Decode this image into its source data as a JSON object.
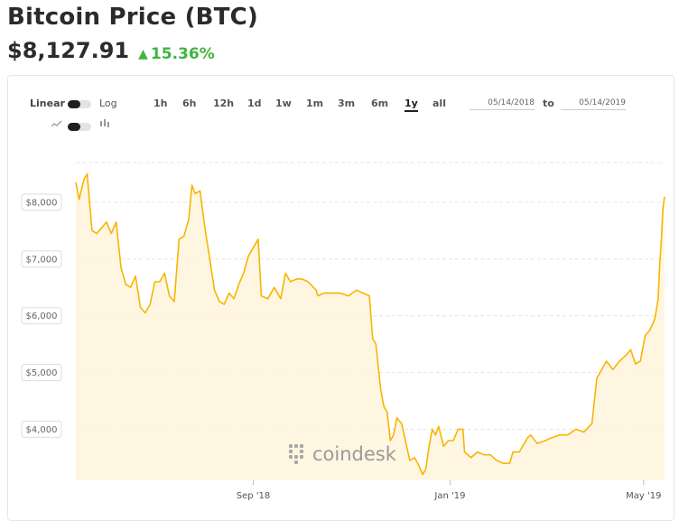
{
  "header": {
    "title": "Bitcoin Price (BTC)",
    "price": "$8,127.91",
    "change": "15.36%",
    "change_color": "#3fb53f"
  },
  "controls": {
    "scale_linear": "Linear",
    "scale_log": "Log",
    "ranges": [
      "1h",
      "6h",
      "12h",
      "1d",
      "1w",
      "1m",
      "3m",
      "6m",
      "1y",
      "all"
    ],
    "active_range": "1y",
    "date_from": "05/14/2018",
    "to_label": "to",
    "date_to": "05/14/2019",
    "chart_style_icons": [
      "line-chart-icon",
      "candlestick-icon"
    ]
  },
  "watermark": "coindesk",
  "colors": {
    "line": "#f7b500",
    "fill": "#fff4dd",
    "grid": "#e4e4e4"
  },
  "chart_data": {
    "type": "area",
    "title": "",
    "xlabel": "",
    "ylabel": "",
    "ylim": [
      3100,
      8700
    ],
    "grid": true,
    "y_ticks": [
      4000,
      5000,
      6000,
      7000,
      8000
    ],
    "y_tick_labels": [
      "$4,000",
      "$5,000",
      "$6,000",
      "$7,000",
      "$8,000"
    ],
    "x_ticks": [
      "2018-09-01",
      "2019-01-01",
      "2019-05-01"
    ],
    "x_tick_labels": [
      "Sep '18",
      "Jan '19",
      "May '19"
    ],
    "x_range": [
      "2018-05-14",
      "2019-05-14"
    ],
    "series": [
      {
        "values": [
          [
            "2018-05-14",
            8350
          ],
          [
            "2018-05-16",
            8050
          ],
          [
            "2018-05-19",
            8400
          ],
          [
            "2018-05-21",
            8500
          ],
          [
            "2018-05-24",
            7500
          ],
          [
            "2018-05-27",
            7450
          ],
          [
            "2018-05-30",
            7550
          ],
          [
            "2018-06-02",
            7650
          ],
          [
            "2018-06-05",
            7450
          ],
          [
            "2018-06-08",
            7650
          ],
          [
            "2018-06-11",
            6850
          ],
          [
            "2018-06-14",
            6550
          ],
          [
            "2018-06-17",
            6500
          ],
          [
            "2018-06-20",
            6700
          ],
          [
            "2018-06-23",
            6150
          ],
          [
            "2018-06-26",
            6050
          ],
          [
            "2018-06-29",
            6200
          ],
          [
            "2018-07-02",
            6600
          ],
          [
            "2018-07-05",
            6600
          ],
          [
            "2018-07-08",
            6750
          ],
          [
            "2018-07-11",
            6350
          ],
          [
            "2018-07-14",
            6250
          ],
          [
            "2018-07-17",
            7350
          ],
          [
            "2018-07-20",
            7400
          ],
          [
            "2018-07-23",
            7700
          ],
          [
            "2018-07-25",
            8300
          ],
          [
            "2018-07-27",
            8150
          ],
          [
            "2018-07-30",
            8200
          ],
          [
            "2018-08-02",
            7550
          ],
          [
            "2018-08-05",
            7000
          ],
          [
            "2018-08-08",
            6450
          ],
          [
            "2018-08-11",
            6250
          ],
          [
            "2018-08-14",
            6200
          ],
          [
            "2018-08-17",
            6400
          ],
          [
            "2018-08-20",
            6300
          ],
          [
            "2018-08-23",
            6550
          ],
          [
            "2018-08-26",
            6750
          ],
          [
            "2018-08-29",
            7050
          ],
          [
            "2018-09-01",
            7200
          ],
          [
            "2018-09-04",
            7350
          ],
          [
            "2018-09-06",
            6350
          ],
          [
            "2018-09-10",
            6300
          ],
          [
            "2018-09-14",
            6500
          ],
          [
            "2018-09-18",
            6300
          ],
          [
            "2018-09-21",
            6750
          ],
          [
            "2018-09-24",
            6600
          ],
          [
            "2018-09-28",
            6650
          ],
          [
            "2018-10-01",
            6650
          ],
          [
            "2018-10-05",
            6600
          ],
          [
            "2018-10-10",
            6450
          ],
          [
            "2018-10-11",
            6350
          ],
          [
            "2018-10-15",
            6400
          ],
          [
            "2018-10-20",
            6400
          ],
          [
            "2018-10-25",
            6400
          ],
          [
            "2018-10-30",
            6350
          ],
          [
            "2018-11-04",
            6450
          ],
          [
            "2018-11-08",
            6400
          ],
          [
            "2018-11-12",
            6350
          ],
          [
            "2018-11-14",
            5600
          ],
          [
            "2018-11-16",
            5500
          ],
          [
            "2018-11-19",
            4700
          ],
          [
            "2018-11-21",
            4400
          ],
          [
            "2018-11-23",
            4300
          ],
          [
            "2018-11-25",
            3800
          ],
          [
            "2018-11-27",
            3900
          ],
          [
            "2018-11-29",
            4200
          ],
          [
            "2018-12-02",
            4100
          ],
          [
            "2018-12-04",
            3850
          ],
          [
            "2018-12-07",
            3450
          ],
          [
            "2018-12-10",
            3500
          ],
          [
            "2018-12-12",
            3400
          ],
          [
            "2018-12-15",
            3200
          ],
          [
            "2018-12-17",
            3300
          ],
          [
            "2018-12-19",
            3700
          ],
          [
            "2018-12-21",
            4000
          ],
          [
            "2018-12-23",
            3900
          ],
          [
            "2018-12-25",
            4050
          ],
          [
            "2018-12-28",
            3700
          ],
          [
            "2018-12-31",
            3800
          ],
          [
            "2019-01-03",
            3800
          ],
          [
            "2019-01-06",
            4000
          ],
          [
            "2019-01-09",
            4000
          ],
          [
            "2019-01-10",
            3600
          ],
          [
            "2019-01-14",
            3500
          ],
          [
            "2019-01-18",
            3600
          ],
          [
            "2019-01-22",
            3550
          ],
          [
            "2019-01-26",
            3550
          ],
          [
            "2019-01-30",
            3450
          ],
          [
            "2019-02-03",
            3400
          ],
          [
            "2019-02-07",
            3400
          ],
          [
            "2019-02-09",
            3600
          ],
          [
            "2019-02-13",
            3600
          ],
          [
            "2019-02-18",
            3850
          ],
          [
            "2019-02-20",
            3900
          ],
          [
            "2019-02-24",
            3750
          ],
          [
            "2019-03-01",
            3800
          ],
          [
            "2019-03-05",
            3850
          ],
          [
            "2019-03-10",
            3900
          ],
          [
            "2019-03-15",
            3900
          ],
          [
            "2019-03-20",
            4000
          ],
          [
            "2019-03-25",
            3950
          ],
          [
            "2019-03-30",
            4100
          ],
          [
            "2019-04-02",
            4900
          ],
          [
            "2019-04-05",
            5050
          ],
          [
            "2019-04-08",
            5200
          ],
          [
            "2019-04-12",
            5050
          ],
          [
            "2019-04-16",
            5200
          ],
          [
            "2019-04-20",
            5300
          ],
          [
            "2019-04-23",
            5400
          ],
          [
            "2019-04-26",
            5150
          ],
          [
            "2019-04-29",
            5200
          ],
          [
            "2019-05-02",
            5650
          ],
          [
            "2019-05-05",
            5750
          ],
          [
            "2019-05-08",
            5950
          ],
          [
            "2019-05-10",
            6300
          ],
          [
            "2019-05-11",
            6900
          ],
          [
            "2019-05-12",
            7300
          ],
          [
            "2019-05-13",
            7900
          ],
          [
            "2019-05-14",
            8100
          ]
        ]
      }
    ]
  }
}
